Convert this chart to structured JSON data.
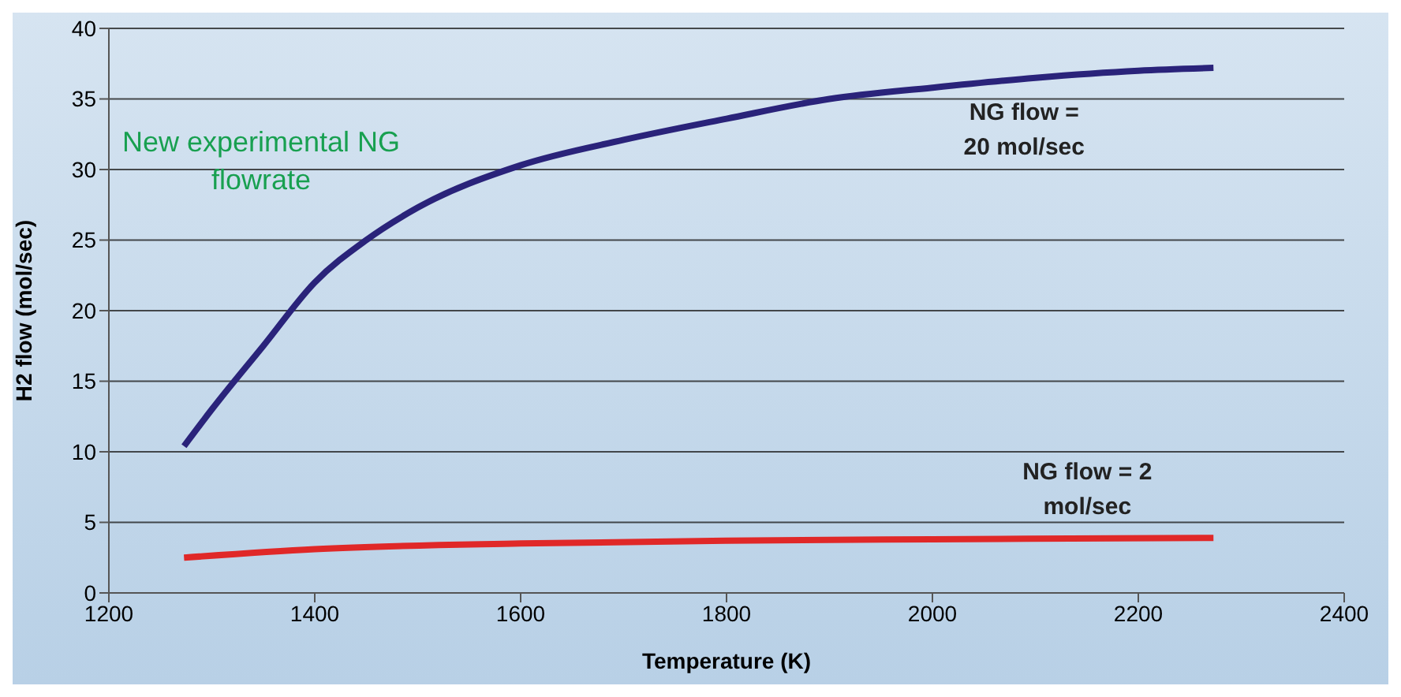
{
  "chart_data": {
    "type": "line",
    "xlabel": "Temperature (K)",
    "ylabel": "H2 flow (mol/sec)",
    "annotations": [
      "New experimental NG flowrate"
    ],
    "series": [
      {
        "name": "NG flow = 20 mol/sec",
        "color": "#2a237a",
        "x": [
          1273,
          1300,
          1350,
          1400,
          1450,
          1500,
          1600,
          1700,
          1800,
          1900,
          2000,
          2100,
          2200,
          2273
        ],
        "values": [
          10.4,
          13,
          17.5,
          22,
          25,
          27.3,
          30.3,
          32.1,
          33.6,
          35,
          35.8,
          36.5,
          37,
          37.2
        ]
      },
      {
        "name": "NG flow = 2 mol/sec",
        "color": "#e02828",
        "x": [
          1273,
          1400,
          1600,
          1800,
          2000,
          2273
        ],
        "values": [
          2.5,
          3.1,
          3.5,
          3.7,
          3.8,
          3.9
        ]
      }
    ],
    "xlim": [
      1200,
      2400
    ],
    "xticks": [
      1200,
      1400,
      1600,
      1800,
      2000,
      2200,
      2400
    ],
    "ylim": [
      0,
      40
    ],
    "yticks": [
      0,
      5,
      10,
      15,
      20,
      25,
      30,
      35,
      40
    ],
    "grid": "y",
    "legend": false,
    "marker": "none",
    "line_style": "solid"
  }
}
